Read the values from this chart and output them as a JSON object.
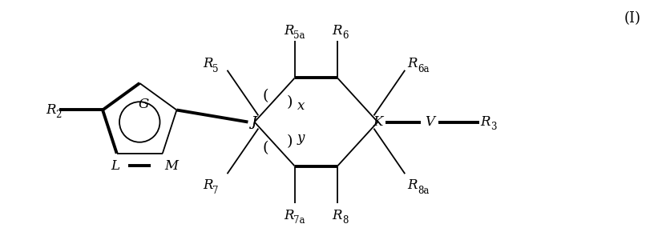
{
  "fig_width": 8.26,
  "fig_height": 3.05,
  "dpi": 100,
  "bg_color": "#ffffff",
  "line_color": "#000000",
  "bold_lw": 2.8,
  "thin_lw": 1.3,
  "fs_main": 12,
  "fs_sub": 8.5,
  "xlim": [
    0,
    10
  ],
  "ylim": [
    0,
    3.7
  ]
}
